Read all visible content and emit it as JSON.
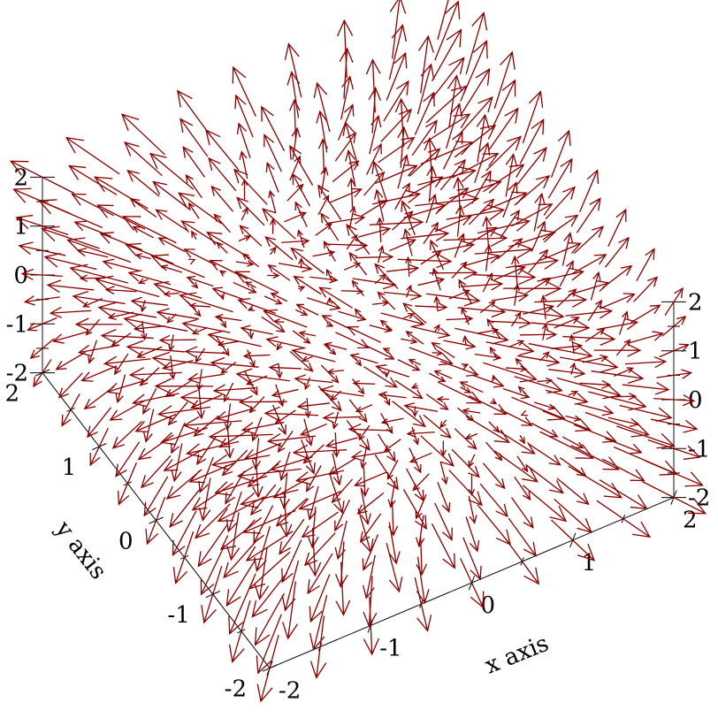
{
  "chart_data": {
    "type": "vector-field-3d",
    "field": {
      "vx": "x",
      "vy": "z",
      "vz": "y"
    },
    "samples_per_axis": 9,
    "xlim": [
      -2,
      2
    ],
    "ylim": [
      -2,
      2
    ],
    "zlim": [
      -2,
      2
    ],
    "xlabel": "x axis",
    "ylabel": "y axis",
    "zlabel": "",
    "x_ticks": [
      "-2",
      "-1",
      "0",
      "1",
      "2"
    ],
    "y_ticks": [
      "-2",
      "-1",
      "0",
      "1",
      "2"
    ],
    "z_ticks": [
      "-2",
      "-1",
      "0",
      "1",
      "2"
    ],
    "arrow_color": "#8b0000",
    "view": {
      "angle": 30,
      "altitude": 60
    }
  }
}
